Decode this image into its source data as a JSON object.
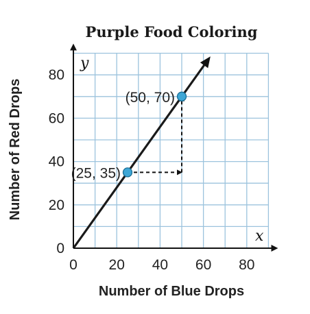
{
  "chart_data": {
    "type": "line",
    "title": "Purple Food Coloring",
    "xlabel": "Number of Blue Drops",
    "ylabel": "Number of Red Drops",
    "x_axis_var": "x",
    "y_axis_var": "y",
    "xlim": [
      0,
      90
    ],
    "ylim": [
      0,
      90
    ],
    "x_ticks": [
      0,
      20,
      40,
      60,
      80
    ],
    "y_ticks": [
      0,
      20,
      40,
      60,
      80
    ],
    "grid": true,
    "grid_step": 10,
    "series": [
      {
        "x": [
          0,
          62.5
        ],
        "y": [
          0,
          87.5
        ],
        "color": "#1a1a1a",
        "arrow": true
      }
    ],
    "points": [
      {
        "x": 25,
        "y": 35,
        "label": "(25, 35)"
      },
      {
        "x": 50,
        "y": 70,
        "label": "(50, 70)"
      }
    ],
    "point_color": "#3ea7d6",
    "guides": [
      {
        "from": [
          25,
          35
        ],
        "to": [
          50,
          35
        ],
        "style": "dashed-arrow"
      },
      {
        "from": [
          50,
          35
        ],
        "to": [
          50,
          70
        ],
        "style": "dashed-arrow"
      }
    ]
  }
}
